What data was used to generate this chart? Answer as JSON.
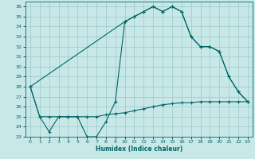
{
  "title": "",
  "xlabel": "Humidex (Indice chaleur)",
  "ylabel": "",
  "bg_color": "#c8e8e8",
  "grid_color": "#8fbfbf",
  "line_color": "#006666",
  "xlim": [
    -0.5,
    23.5
  ],
  "ylim": [
    23,
    36.5
  ],
  "yticks": [
    23,
    24,
    25,
    26,
    27,
    28,
    29,
    30,
    31,
    32,
    33,
    34,
    35,
    36
  ],
  "xticks": [
    0,
    1,
    2,
    3,
    4,
    5,
    6,
    7,
    8,
    9,
    10,
    11,
    12,
    13,
    14,
    15,
    16,
    17,
    18,
    19,
    20,
    21,
    22,
    23
  ],
  "series": [
    {
      "x": [
        0,
        1,
        2,
        3,
        4,
        5,
        6,
        7,
        8,
        9,
        10,
        11,
        12,
        13,
        14,
        15,
        16,
        17,
        18,
        19,
        20,
        21,
        22,
        23
      ],
      "y": [
        28,
        25,
        23.5,
        25,
        25,
        25,
        23,
        23,
        24.5,
        26.5,
        34.5,
        35,
        35.5,
        36,
        35.5,
        36,
        35.5,
        33,
        32,
        32,
        31.5,
        29,
        27.5,
        26.5
      ]
    },
    {
      "x": [
        0,
        1,
        2,
        3,
        4,
        5,
        6,
        7,
        8,
        9,
        10,
        11,
        12,
        13,
        14,
        15,
        16,
        17,
        18,
        19,
        20,
        21,
        22,
        23
      ],
      "y": [
        28,
        25,
        25,
        25,
        25,
        25,
        25,
        25,
        25.2,
        25.3,
        25.4,
        25.6,
        25.8,
        26.0,
        26.2,
        26.3,
        26.4,
        26.4,
        26.5,
        26.5,
        26.5,
        26.5,
        26.5,
        26.5
      ]
    },
    {
      "x": [
        0,
        10,
        11,
        12,
        13,
        14,
        15,
        16,
        17,
        18,
        19,
        20,
        21,
        22,
        23
      ],
      "y": [
        28,
        34.5,
        35,
        35.5,
        36,
        35.5,
        36,
        35.5,
        33,
        32,
        32,
        31.5,
        29,
        27.5,
        26.5
      ]
    }
  ]
}
